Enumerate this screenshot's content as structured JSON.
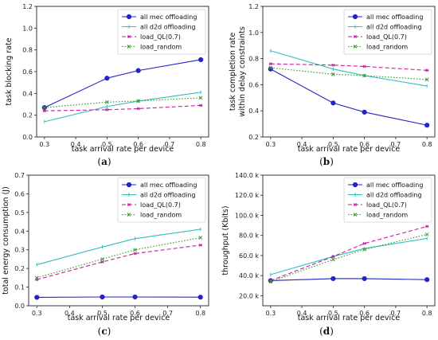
{
  "colors": {
    "mec": "#2323c8",
    "d2d": "#2fbfbf",
    "ql": "#c21f9c",
    "random": "#3a9a2a"
  },
  "chart_data": [
    {
      "type": "line",
      "caption": "(a)",
      "xlabel": "task arrival rate per device",
      "ylabel": "task blocking rate",
      "xlim": [
        0.275,
        0.825
      ],
      "ylim": [
        0.0,
        1.2
      ],
      "xticks": [
        0.3,
        0.4,
        0.5,
        0.6,
        0.7,
        0.8
      ],
      "xtick_labels": [
        "0.3",
        "0.4",
        "0.5",
        "0.6",
        "0.7",
        "0.8"
      ],
      "yticks": [
        0.0,
        0.2,
        0.4,
        0.6,
        0.8,
        1.0,
        1.2
      ],
      "ytick_labels": [
        "0.0",
        "0.2",
        "0.4",
        "0.6",
        "0.8",
        "1.0",
        "1.2"
      ],
      "x": [
        0.3,
        0.5,
        0.6,
        0.8
      ],
      "legend_position": "top-right",
      "series": [
        {
          "name": "all mec offloading",
          "values": [
            0.27,
            0.54,
            0.61,
            0.71
          ]
        },
        {
          "name": "all d2d offloading",
          "values": [
            0.14,
            0.28,
            0.33,
            0.41
          ]
        },
        {
          "name": "load_QL(0.7)",
          "values": [
            0.24,
            0.25,
            0.26,
            0.29
          ]
        },
        {
          "name": "load_random",
          "values": [
            0.27,
            0.32,
            0.33,
            0.36
          ]
        }
      ]
    },
    {
      "type": "line",
      "caption": "(b)",
      "xlabel": "task arrival rate per device",
      "ylabel": "task completion rate within delay constraints",
      "xlim": [
        0.275,
        0.825
      ],
      "ylim": [
        0.2,
        1.2
      ],
      "xticks": [
        0.3,
        0.4,
        0.5,
        0.6,
        0.7,
        0.8
      ],
      "xtick_labels": [
        "0.3",
        "0.4",
        "0.5",
        "0.6",
        "0.7",
        "0.8"
      ],
      "yticks": [
        0.2,
        0.4,
        0.6,
        0.8,
        1.0,
        1.2
      ],
      "ytick_labels": [
        "0.2",
        "0.4",
        "0.6",
        "0.8",
        "1.0",
        "1.2"
      ],
      "x": [
        0.3,
        0.5,
        0.6,
        0.8
      ],
      "legend_position": "top-right",
      "series": [
        {
          "name": "all mec offloading",
          "values": [
            0.72,
            0.46,
            0.39,
            0.29
          ]
        },
        {
          "name": "all d2d offloading",
          "values": [
            0.86,
            0.72,
            0.67,
            0.59
          ]
        },
        {
          "name": "load_QL(0.7)",
          "values": [
            0.76,
            0.75,
            0.74,
            0.71
          ]
        },
        {
          "name": "load_random",
          "values": [
            0.73,
            0.68,
            0.67,
            0.64
          ]
        }
      ]
    },
    {
      "type": "line",
      "caption": "(c)",
      "xlabel": "task arrival rate per device",
      "ylabel": "total energy consumption (J)",
      "xlim": [
        0.275,
        0.825
      ],
      "ylim": [
        0.0,
        0.7
      ],
      "xticks": [
        0.3,
        0.4,
        0.5,
        0.6,
        0.7,
        0.8
      ],
      "xtick_labels": [
        "0.3",
        "0.4",
        "0.5",
        "0.6",
        "0.7",
        "0.8"
      ],
      "yticks": [
        0.0,
        0.1,
        0.2,
        0.3,
        0.4,
        0.5,
        0.6,
        0.7
      ],
      "ytick_labels": [
        "0.0",
        "0.1",
        "0.2",
        "0.3",
        "0.4",
        "0.5",
        "0.6",
        "0.7"
      ],
      "x": [
        0.3,
        0.5,
        0.6,
        0.8
      ],
      "legend_position": "top-right",
      "series": [
        {
          "name": "all mec offloading",
          "values": [
            0.045,
            0.047,
            0.047,
            0.046
          ]
        },
        {
          "name": "all d2d offloading",
          "values": [
            0.22,
            0.315,
            0.36,
            0.41
          ]
        },
        {
          "name": "load_QL(0.7)",
          "values": [
            0.14,
            0.235,
            0.28,
            0.325
          ]
        },
        {
          "name": "load_random",
          "values": [
            0.15,
            0.25,
            0.3,
            0.365
          ]
        }
      ]
    },
    {
      "type": "line",
      "caption": "(d)",
      "xlabel": "task arrival rate per device",
      "ylabel": "throughput (Kbits)",
      "xlim": [
        0.275,
        0.825
      ],
      "ylim": [
        10000,
        140000
      ],
      "xticks": [
        0.3,
        0.4,
        0.5,
        0.6,
        0.7,
        0.8
      ],
      "xtick_labels": [
        "0.3",
        "0.4",
        "0.5",
        "0.6",
        "0.7",
        "0.8"
      ],
      "yticks": [
        20000,
        40000,
        60000,
        80000,
        100000,
        120000,
        140000
      ],
      "ytick_labels": [
        "20.0 k",
        "40.0 k",
        "60.0 k",
        "80.0 k",
        "100.0 k",
        "120.0 k",
        "140.0 k"
      ],
      "x": [
        0.3,
        0.5,
        0.6,
        0.8
      ],
      "legend_position": "top-right",
      "series": [
        {
          "name": "all mec offloading",
          "values": [
            35000,
            37000,
            37000,
            36000
          ]
        },
        {
          "name": "all d2d offloading",
          "values": [
            41000,
            59000,
            67000,
            77000
          ]
        },
        {
          "name": "load_QL(0.7)",
          "values": [
            35000,
            59000,
            72000,
            89000
          ]
        },
        {
          "name": "load_random",
          "values": [
            34000,
            56000,
            66000,
            81000
          ]
        }
      ]
    }
  ]
}
